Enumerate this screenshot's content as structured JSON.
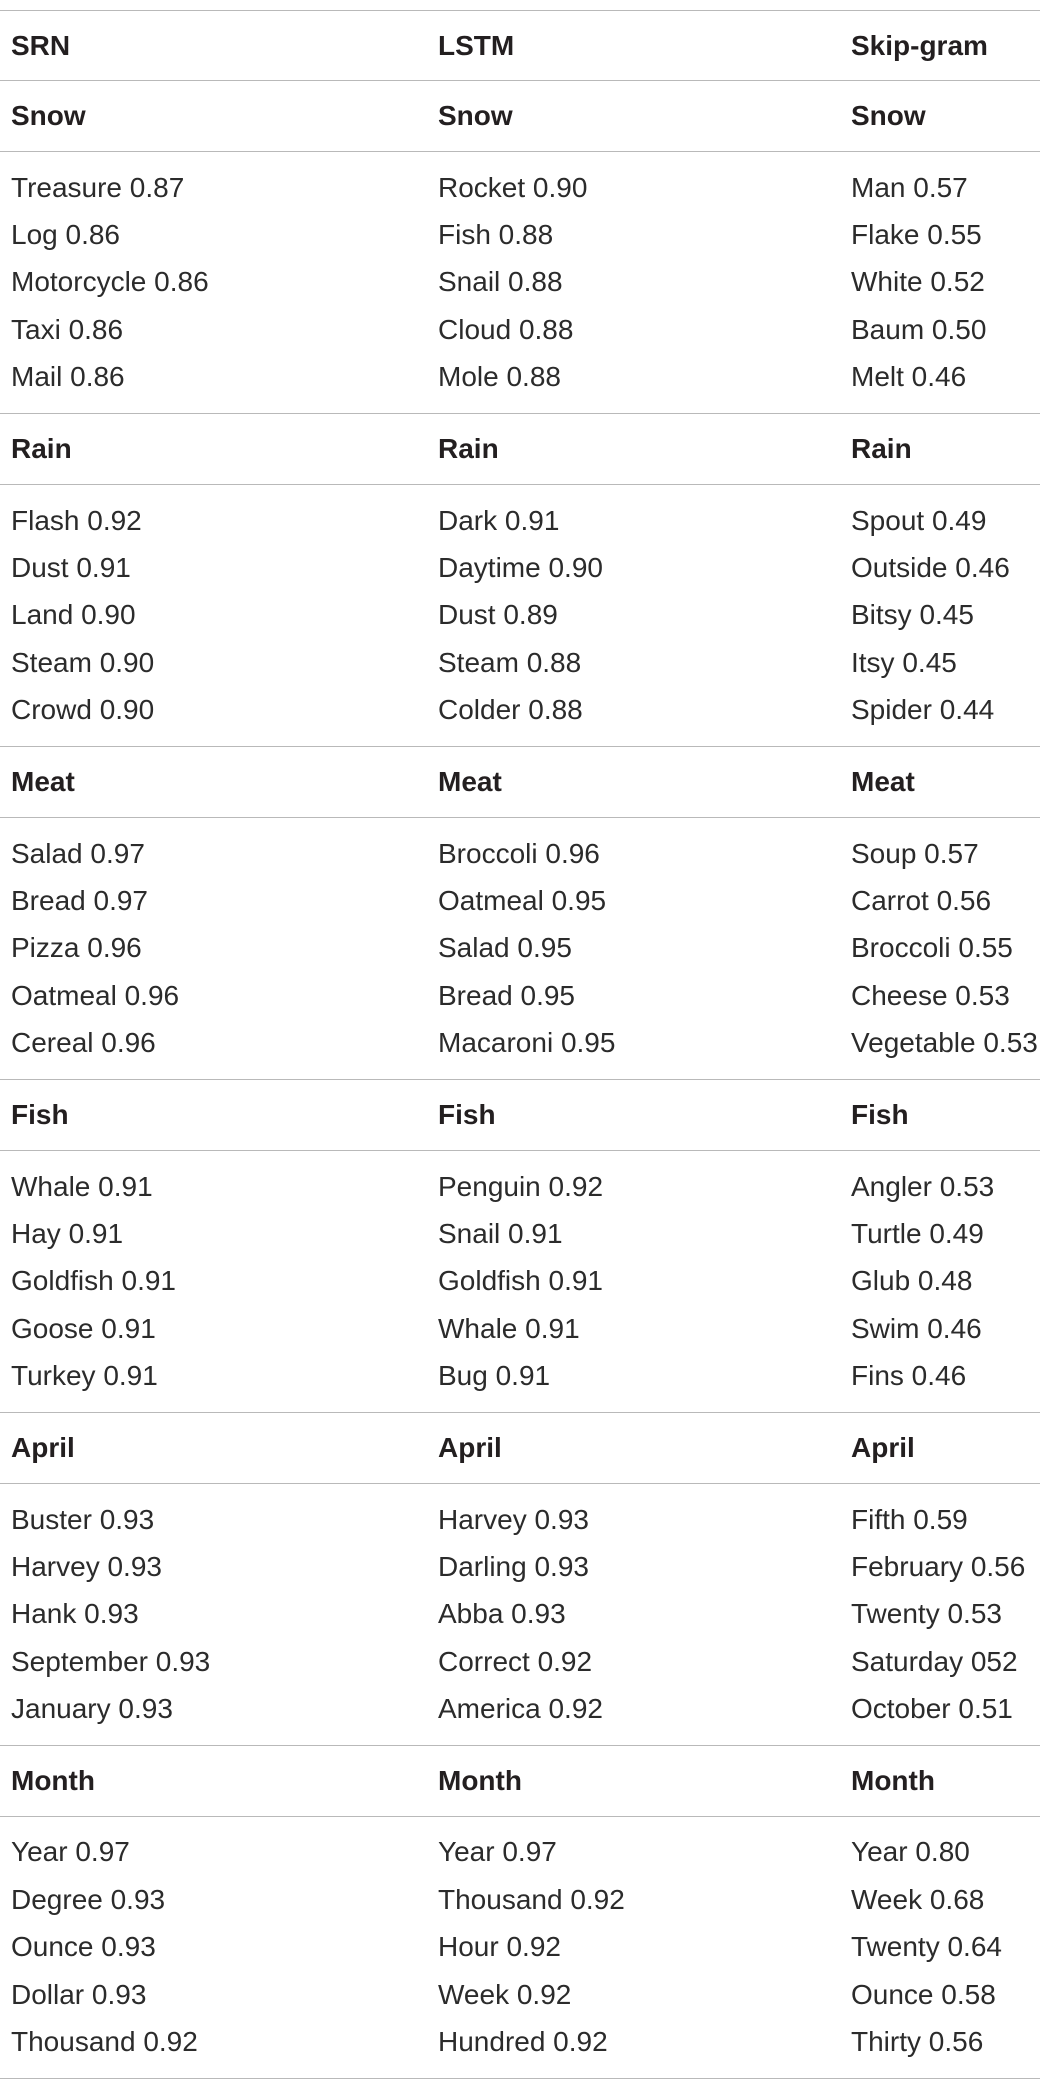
{
  "headers": [
    "SRN",
    "LSTM",
    "Skip-gram"
  ],
  "sections": [
    {
      "labels": [
        "Snow",
        "Snow",
        "Snow"
      ],
      "rows": [
        [
          "Treasure 0.87",
          "Rocket 0.90",
          "Man 0.57"
        ],
        [
          "Log 0.86",
          "Fish 0.88",
          "Flake 0.55"
        ],
        [
          "Motorcycle 0.86",
          "Snail 0.88",
          "White 0.52"
        ],
        [
          "Taxi 0.86",
          "Cloud 0.88",
          "Baum 0.50"
        ],
        [
          "Mail 0.86",
          "Mole 0.88",
          "Melt 0.46"
        ]
      ]
    },
    {
      "labels": [
        "Rain",
        "Rain",
        "Rain"
      ],
      "rows": [
        [
          "Flash 0.92",
          "Dark 0.91",
          "Spout 0.49"
        ],
        [
          "Dust 0.91",
          "Daytime 0.90",
          "Outside 0.46"
        ],
        [
          "Land 0.90",
          "Dust 0.89",
          "Bitsy 0.45"
        ],
        [
          "Steam 0.90",
          "Steam 0.88",
          "Itsy 0.45"
        ],
        [
          "Crowd 0.90",
          "Colder 0.88",
          "Spider 0.44"
        ]
      ]
    },
    {
      "labels": [
        "Meat",
        "Meat",
        "Meat"
      ],
      "rows": [
        [
          "Salad 0.97",
          "Broccoli 0.96",
          "Soup 0.57"
        ],
        [
          "Bread 0.97",
          "Oatmeal 0.95",
          "Carrot 0.56"
        ],
        [
          "Pizza 0.96",
          "Salad 0.95",
          "Broccoli 0.55"
        ],
        [
          "Oatmeal 0.96",
          "Bread 0.95",
          "Cheese 0.53"
        ],
        [
          "Cereal 0.96",
          "Macaroni 0.95",
          "Vegetable 0.53"
        ]
      ]
    },
    {
      "labels": [
        "Fish",
        "Fish",
        "Fish"
      ],
      "rows": [
        [
          "Whale 0.91",
          "Penguin 0.92",
          "Angler 0.53"
        ],
        [
          "Hay 0.91",
          "Snail 0.91",
          "Turtle 0.49"
        ],
        [
          "Goldfish 0.91",
          "Goldfish 0.91",
          "Glub 0.48"
        ],
        [
          "Goose 0.91",
          "Whale 0.91",
          "Swim 0.46"
        ],
        [
          "Turkey 0.91",
          "Bug 0.91",
          "Fins 0.46"
        ]
      ]
    },
    {
      "labels": [
        "April",
        "April",
        "April"
      ],
      "rows": [
        [
          "Buster 0.93",
          "Harvey 0.93",
          "Fifth 0.59"
        ],
        [
          "Harvey 0.93",
          "Darling 0.93",
          "February 0.56"
        ],
        [
          "Hank 0.93",
          "Abba 0.93",
          "Twenty 0.53"
        ],
        [
          "September 0.93",
          "Correct 0.92",
          "Saturday 052"
        ],
        [
          "January 0.93",
          "America 0.92",
          "October 0.51"
        ]
      ]
    },
    {
      "labels": [
        "Month",
        "Month",
        "Month"
      ],
      "rows": [
        [
          "Year 0.97",
          "Year 0.97",
          "Year 0.80"
        ],
        [
          "Degree 0.93",
          "Thousand 0.92",
          "Week 0.68"
        ],
        [
          "Ounce 0.93",
          "Hour 0.92",
          "Twenty 0.64"
        ],
        [
          "Dollar 0.93",
          "Week 0.92",
          "Ounce 0.58"
        ],
        [
          "Thousand 0.92",
          "Hundred 0.92",
          "Thirty 0.56"
        ]
      ]
    }
  ]
}
